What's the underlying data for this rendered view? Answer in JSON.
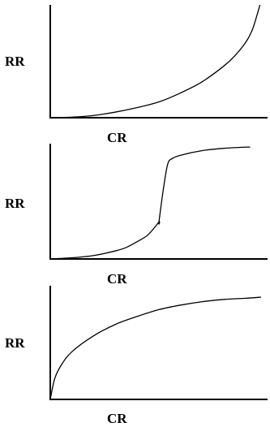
{
  "chart_data": [
    {
      "type": "line",
      "xlabel": "CR",
      "ylabel": "RR",
      "xlim": [
        0,
        1
      ],
      "ylim": [
        0,
        1
      ],
      "grid": false,
      "legend": "none",
      "series": [
        {
          "x": [
            0.0,
            0.1,
            0.2,
            0.3,
            0.4,
            0.5,
            0.6,
            0.7,
            0.8,
            0.85,
            0.9,
            0.93,
            0.95,
            0.965
          ],
          "y": [
            0.0,
            0.005,
            0.02,
            0.05,
            0.09,
            0.14,
            0.22,
            0.32,
            0.46,
            0.55,
            0.67,
            0.78,
            0.9,
            1.0
          ]
        }
      ]
    },
    {
      "type": "line",
      "xlabel": "CR",
      "ylabel": "RR",
      "xlim": [
        0,
        1
      ],
      "ylim": [
        0,
        1
      ],
      "grid": false,
      "legend": "none",
      "series": [
        {
          "x": [
            0.0,
            0.1,
            0.2,
            0.3,
            0.35,
            0.4,
            0.45,
            0.5,
            0.5,
            0.52,
            0.54,
            0.56,
            0.6,
            0.7,
            0.8,
            0.9,
            0.92
          ],
          "y": [
            0.0,
            0.01,
            0.03,
            0.07,
            0.1,
            0.15,
            0.21,
            0.32,
            0.32,
            0.6,
            0.82,
            0.87,
            0.9,
            0.94,
            0.96,
            0.97,
            0.97
          ]
        }
      ]
    },
    {
      "type": "line",
      "xlabel": "CR",
      "ylabel": "RR",
      "xlim": [
        0,
        1
      ],
      "ylim": [
        0,
        1
      ],
      "grid": false,
      "legend": "none",
      "series": [
        {
          "x": [
            0.0,
            0.02,
            0.05,
            0.1,
            0.2,
            0.3,
            0.4,
            0.5,
            0.6,
            0.7,
            0.8,
            0.9,
            0.97
          ],
          "y": [
            0.0,
            0.18,
            0.3,
            0.42,
            0.56,
            0.66,
            0.73,
            0.79,
            0.83,
            0.86,
            0.88,
            0.89,
            0.9
          ]
        }
      ]
    }
  ]
}
